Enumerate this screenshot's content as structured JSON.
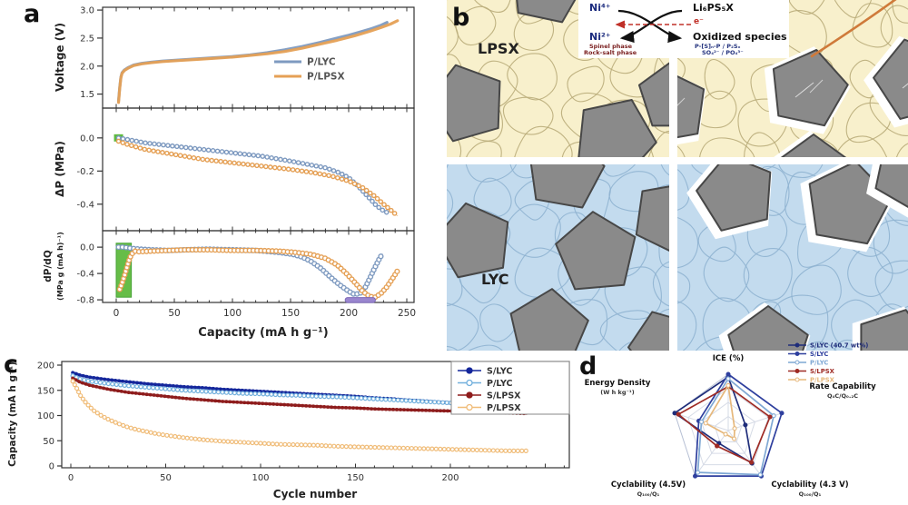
{
  "panels": {
    "a": {
      "label": "a"
    },
    "b": {
      "label": "b",
      "lpsx_label": "LPSX",
      "lyc_label": "LYC",
      "reaction": {
        "ni4": "Ni⁴⁺",
        "ni2": "Ni²⁺",
        "li6ps5x": "Li₆PS₅X",
        "oxidized": "Oxidized species",
        "electron": "e⁻",
        "left_note_1": "Spinel phase",
        "left_note_2": "Rock-salt phase",
        "right_note_1": "P-[S]ₙ-P / P₂Sₓ",
        "right_note_2": "SO₄²⁻ / PO₄³⁻"
      },
      "colors": {
        "lpsx_bg": "#f8f0cc",
        "lpsx_line": "#b9ac7a",
        "lyc_bg": "#c3dbee",
        "lyc_line": "#8fb2d0",
        "particle": "#8a8a8a",
        "particle_border": "#474747",
        "crack": "#cf7a3a"
      }
    },
    "c": {
      "label": "c"
    },
    "d": {
      "label": "d"
    }
  },
  "chart_data": [
    {
      "id": "voltage",
      "type": "line",
      "title": "",
      "ylabel": "Voltage (V)",
      "xlabel": "",
      "ylim": [
        3.05,
        1.25
      ],
      "yticks": [
        3.0,
        2.5,
        2.0,
        1.5
      ],
      "xticks": [
        0,
        50,
        100,
        150,
        200,
        250
      ],
      "legend_position": "lower right",
      "series": [
        {
          "name": "P/LYC",
          "color": "#7e9ac0",
          "x": [
            2,
            3,
            4,
            5,
            7,
            10,
            15,
            22,
            30,
            40,
            55,
            70,
            85,
            100,
            115,
            130,
            145,
            160,
            175,
            190,
            200,
            210,
            220,
            228,
            233
          ],
          "y": [
            1.38,
            1.62,
            1.8,
            1.88,
            1.93,
            1.97,
            2.02,
            2.05,
            2.07,
            2.09,
            2.11,
            2.13,
            2.15,
            2.17,
            2.2,
            2.24,
            2.29,
            2.35,
            2.42,
            2.5,
            2.55,
            2.61,
            2.67,
            2.73,
            2.78
          ]
        },
        {
          "name": "P/LPSX",
          "color": "#e5a055",
          "x": [
            2,
            3,
            4,
            5,
            7,
            10,
            15,
            22,
            30,
            40,
            55,
            70,
            85,
            100,
            115,
            130,
            145,
            160,
            175,
            190,
            205,
            218,
            228,
            236,
            242
          ],
          "y": [
            1.35,
            1.6,
            1.79,
            1.87,
            1.92,
            1.96,
            2.01,
            2.04,
            2.06,
            2.08,
            2.1,
            2.12,
            2.14,
            2.16,
            2.19,
            2.22,
            2.26,
            2.32,
            2.39,
            2.46,
            2.54,
            2.62,
            2.69,
            2.75,
            2.81
          ]
        }
      ]
    },
    {
      "id": "pressure",
      "type": "line",
      "ylabel": "ΔP (MPa)",
      "xlabel": "",
      "ylim": [
        0.18,
        -0.56
      ],
      "yticks": [
        0.0,
        -0.2,
        -0.4
      ],
      "start_marker": {
        "x": 2,
        "y": 0.0,
        "color": "#5eba3f"
      },
      "series": [
        {
          "name": "P/LYC",
          "color": "#7e9ac0",
          "x": [
            2,
            10,
            25,
            50,
            75,
            100,
            125,
            150,
            165,
            180,
            192,
            200,
            208,
            216,
            224,
            230,
            233
          ],
          "y": [
            0.0,
            -0.01,
            -0.03,
            -0.05,
            -0.07,
            -0.09,
            -0.11,
            -0.14,
            -0.16,
            -0.18,
            -0.21,
            -0.24,
            -0.29,
            -0.35,
            -0.41,
            -0.44,
            -0.45
          ]
        },
        {
          "name": "P/LPSX",
          "color": "#e5a055",
          "x": [
            2,
            10,
            25,
            50,
            75,
            100,
            125,
            150,
            170,
            185,
            200,
            212,
            222,
            230,
            237,
            242
          ],
          "y": [
            -0.02,
            -0.04,
            -0.07,
            -0.1,
            -0.13,
            -0.15,
            -0.17,
            -0.19,
            -0.21,
            -0.23,
            -0.26,
            -0.3,
            -0.35,
            -0.4,
            -0.44,
            -0.47
          ]
        }
      ]
    },
    {
      "id": "dpdq",
      "type": "scatter",
      "ylabel_line1": "dP/dQ",
      "ylabel_line2": "(MPa g (mA h)⁻¹)",
      "xlabel": "Capacity (mA h g⁻¹)",
      "ylim": [
        0.25,
        -0.84
      ],
      "yticks": [
        0.0,
        -0.4,
        -0.8
      ],
      "green_region": {
        "x0": 0,
        "x1": 13,
        "y0": 0.06,
        "y1": -0.76,
        "color": "#5eba3f"
      },
      "purple_bar": {
        "x0": 197,
        "x1": 223,
        "y": -0.8,
        "color": "#9a86cf"
      },
      "series": [
        {
          "name": "P/LYC",
          "color": "#7e9ac0",
          "x": [
            2,
            6,
            10,
            14,
            20,
            30,
            45,
            60,
            80,
            100,
            120,
            140,
            152,
            160,
            168,
            176,
            184,
            192,
            200,
            205,
            210,
            214,
            218,
            222,
            226,
            229
          ],
          "y": [
            0.0,
            0.0,
            -0.01,
            -0.02,
            -0.03,
            -0.04,
            -0.05,
            -0.04,
            -0.03,
            -0.04,
            -0.05,
            -0.08,
            -0.11,
            -0.15,
            -0.22,
            -0.32,
            -0.45,
            -0.57,
            -0.67,
            -0.72,
            -0.7,
            -0.62,
            -0.48,
            -0.33,
            -0.19,
            -0.1
          ]
        },
        {
          "name": "P/LPSX",
          "color": "#e5a055",
          "x": [
            3,
            5,
            7,
            9,
            11,
            13,
            16,
            20,
            30,
            45,
            60,
            80,
            100,
            120,
            140,
            155,
            168,
            180,
            190,
            198,
            206,
            212,
            218,
            223,
            228,
            233,
            238,
            242
          ],
          "y": [
            -0.64,
            -0.55,
            -0.44,
            -0.32,
            -0.2,
            -0.11,
            -0.06,
            -0.07,
            -0.06,
            -0.05,
            -0.04,
            -0.04,
            -0.05,
            -0.05,
            -0.06,
            -0.08,
            -0.11,
            -0.17,
            -0.27,
            -0.4,
            -0.55,
            -0.67,
            -0.75,
            -0.76,
            -0.7,
            -0.6,
            -0.47,
            -0.36
          ]
        }
      ]
    },
    {
      "id": "cycling",
      "type": "scatter",
      "xlabel": "Cycle number",
      "ylabel": "Capacity (mA h g⁻¹)",
      "xticks": [
        0,
        50,
        100,
        150,
        200
      ],
      "yticks": [
        0,
        50,
        100,
        150,
        200
      ],
      "ylim": [
        0,
        200
      ],
      "legend_position": "upper right",
      "series": [
        {
          "name": "S/LYC",
          "color": "#14269b",
          "marker": "filled",
          "x": [
            1,
            5,
            10,
            20,
            30,
            40,
            50,
            60,
            70,
            80,
            90,
            100,
            110,
            120,
            130,
            140,
            150,
            160,
            170,
            180,
            190,
            200,
            210,
            220,
            230,
            240
          ],
          "y": [
            185,
            180,
            176,
            171,
            167,
            163,
            160,
            157,
            155,
            152,
            150,
            148,
            146,
            144,
            142,
            140,
            138,
            135,
            133,
            130,
            128,
            125,
            122,
            119,
            116,
            113
          ]
        },
        {
          "name": "P/LYC",
          "color": "#72b0dd",
          "marker": "open",
          "x": [
            1,
            5,
            10,
            20,
            30,
            40,
            50,
            60,
            70,
            80,
            90,
            100,
            110,
            120,
            130,
            140,
            150,
            160,
            170,
            180,
            190,
            200,
            210,
            220,
            230,
            240
          ],
          "y": [
            179,
            172,
            168,
            163,
            159,
            156,
            153,
            150,
            148,
            146,
            144,
            143,
            141,
            140,
            138,
            137,
            135,
            133,
            131,
            129,
            127,
            125,
            123,
            121,
            119,
            117
          ]
        },
        {
          "name": "S/LPSX",
          "color": "#8e1c1c",
          "marker": "filled",
          "x": [
            1,
            5,
            10,
            20,
            30,
            40,
            50,
            60,
            70,
            80,
            90,
            100,
            110,
            120,
            130,
            140,
            150,
            160,
            170,
            180,
            190,
            200,
            210,
            220,
            230,
            240
          ],
          "y": [
            174,
            166,
            160,
            152,
            146,
            142,
            138,
            134,
            131,
            128,
            126,
            124,
            122,
            120,
            118,
            116,
            115,
            113,
            112,
            111,
            110,
            109,
            107,
            106,
            105,
            104
          ]
        },
        {
          "name": "P/LPSX",
          "color": "#f0bc78",
          "marker": "open",
          "x": [
            1,
            3,
            5,
            8,
            12,
            16,
            20,
            25,
            30,
            35,
            40,
            45,
            50,
            60,
            70,
            80,
            90,
            100,
            110,
            120,
            130,
            140,
            150,
            160,
            170,
            180,
            190,
            200,
            210,
            220,
            230,
            240
          ],
          "y": [
            168,
            155,
            140,
            125,
            110,
            100,
            92,
            84,
            77,
            72,
            68,
            64,
            61,
            56,
            52,
            49,
            47,
            45,
            43,
            42,
            41,
            39,
            38,
            37,
            36,
            35,
            34,
            33,
            32,
            31,
            30,
            30
          ]
        }
      ]
    },
    {
      "id": "radar",
      "type": "radar",
      "rmax": 1,
      "axes": [
        {
          "label": "ICE (%)",
          "sublabel": ""
        },
        {
          "label": "Rate Capability",
          "sublabel": "Q₄C/Q₀.₂C"
        },
        {
          "label": "Cyclability (4.3 V)",
          "sublabel": "Q₁₀₀/Q₁"
        },
        {
          "label": "Cyclability (4.5V)",
          "sublabel": "Q₁₀₀/Q₁"
        },
        {
          "label": "Energy Density",
          "sublabel": "(W h kg⁻¹)"
        }
      ],
      "series": [
        {
          "name": "S/LYC (40.7 wt%)",
          "color": "#1f2d7a",
          "marker": "filled",
          "values": [
            0.95,
            0.32,
            0.72,
            0.28,
            1.0
          ]
        },
        {
          "name": "S/LYC",
          "color": "#2e3f9e",
          "marker": "filled",
          "values": [
            1.0,
            1.0,
            1.0,
            1.0,
            0.55
          ]
        },
        {
          "name": "P/LYC",
          "color": "#7fa8d4",
          "marker": "open",
          "values": [
            0.92,
            0.85,
            0.97,
            0.92,
            0.5
          ]
        },
        {
          "name": "S/LPSX",
          "color": "#9e2b25",
          "marker": "filled",
          "values": [
            0.78,
            0.78,
            0.7,
            0.34,
            0.93
          ]
        },
        {
          "name": "P/LPSX",
          "color": "#e6b87c",
          "marker": "open",
          "values": [
            0.8,
            0.12,
            0.18,
            0.08,
            0.42
          ]
        }
      ]
    }
  ]
}
